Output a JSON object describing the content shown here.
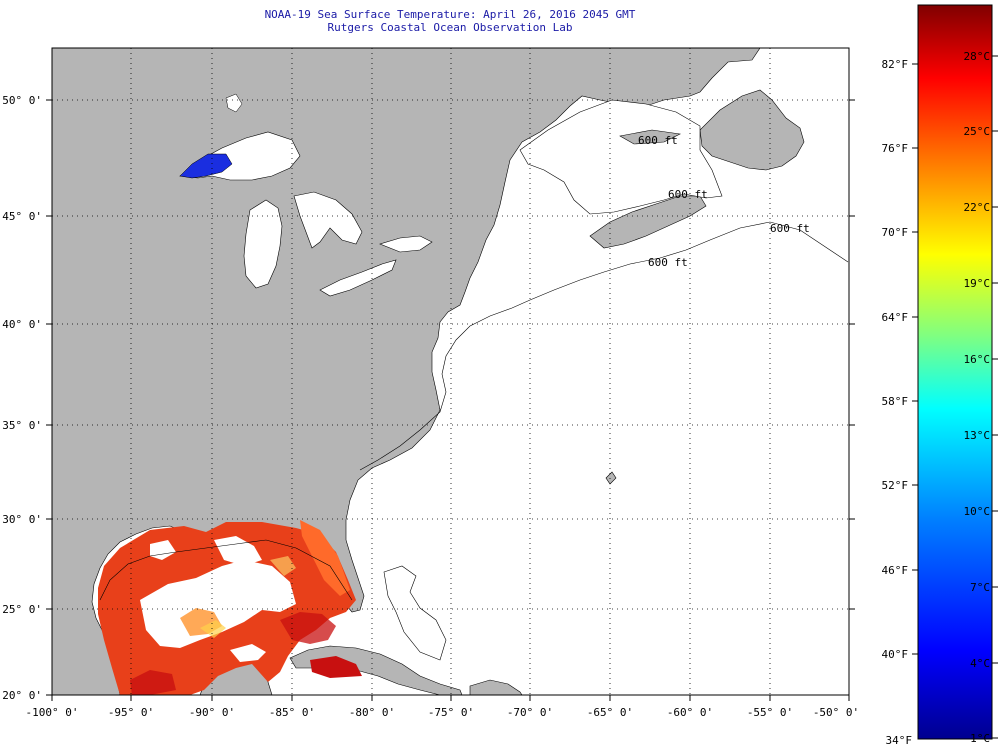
{
  "title": {
    "line1": "NOAA-19 Sea Surface Temperature:  April 26, 2016 2045 GMT",
    "line2": "Rutgers Coastal Ocean Observation Lab"
  },
  "map": {
    "lon_range": [
      -100,
      -50
    ],
    "lat_range": [
      20,
      52.5
    ],
    "lon_ticks": [
      "-100° 0'",
      "-95° 0'",
      "-90° 0'",
      "-85° 0'",
      "-80° 0'",
      "-75° 0'",
      "-70° 0'",
      "-65° 0'",
      "-60° 0'",
      "-55° 0'",
      "-50° 0'"
    ],
    "lat_ticks": [
      "20° 0'",
      "25° 0'",
      "30° 0'",
      "35° 0'",
      "40° 0'",
      "45° 0'",
      "50° 0'"
    ],
    "contour_labels": [
      "600 ft",
      "600 ft",
      "600 ft",
      "600 ft"
    ],
    "land_color": "#b5b5b5",
    "cloud_color": "#ffffff"
  },
  "colorbar": {
    "fahrenheit": [
      "82°F",
      "76°F",
      "70°F",
      "64°F",
      "58°F",
      "52°F",
      "46°F",
      "40°F",
      "34°F"
    ],
    "celsius": [
      "28°C",
      "25°C",
      "22°C",
      "19°C",
      "16°C",
      "13°C",
      "10°C",
      "7°C",
      "4°C",
      "1°C"
    ],
    "range_f": [
      34,
      86
    ],
    "colors": [
      "#00008f",
      "#0000ff",
      "#0080ff",
      "#00ffff",
      "#80ff80",
      "#ffff00",
      "#ff8000",
      "#ff0000",
      "#800000"
    ]
  }
}
